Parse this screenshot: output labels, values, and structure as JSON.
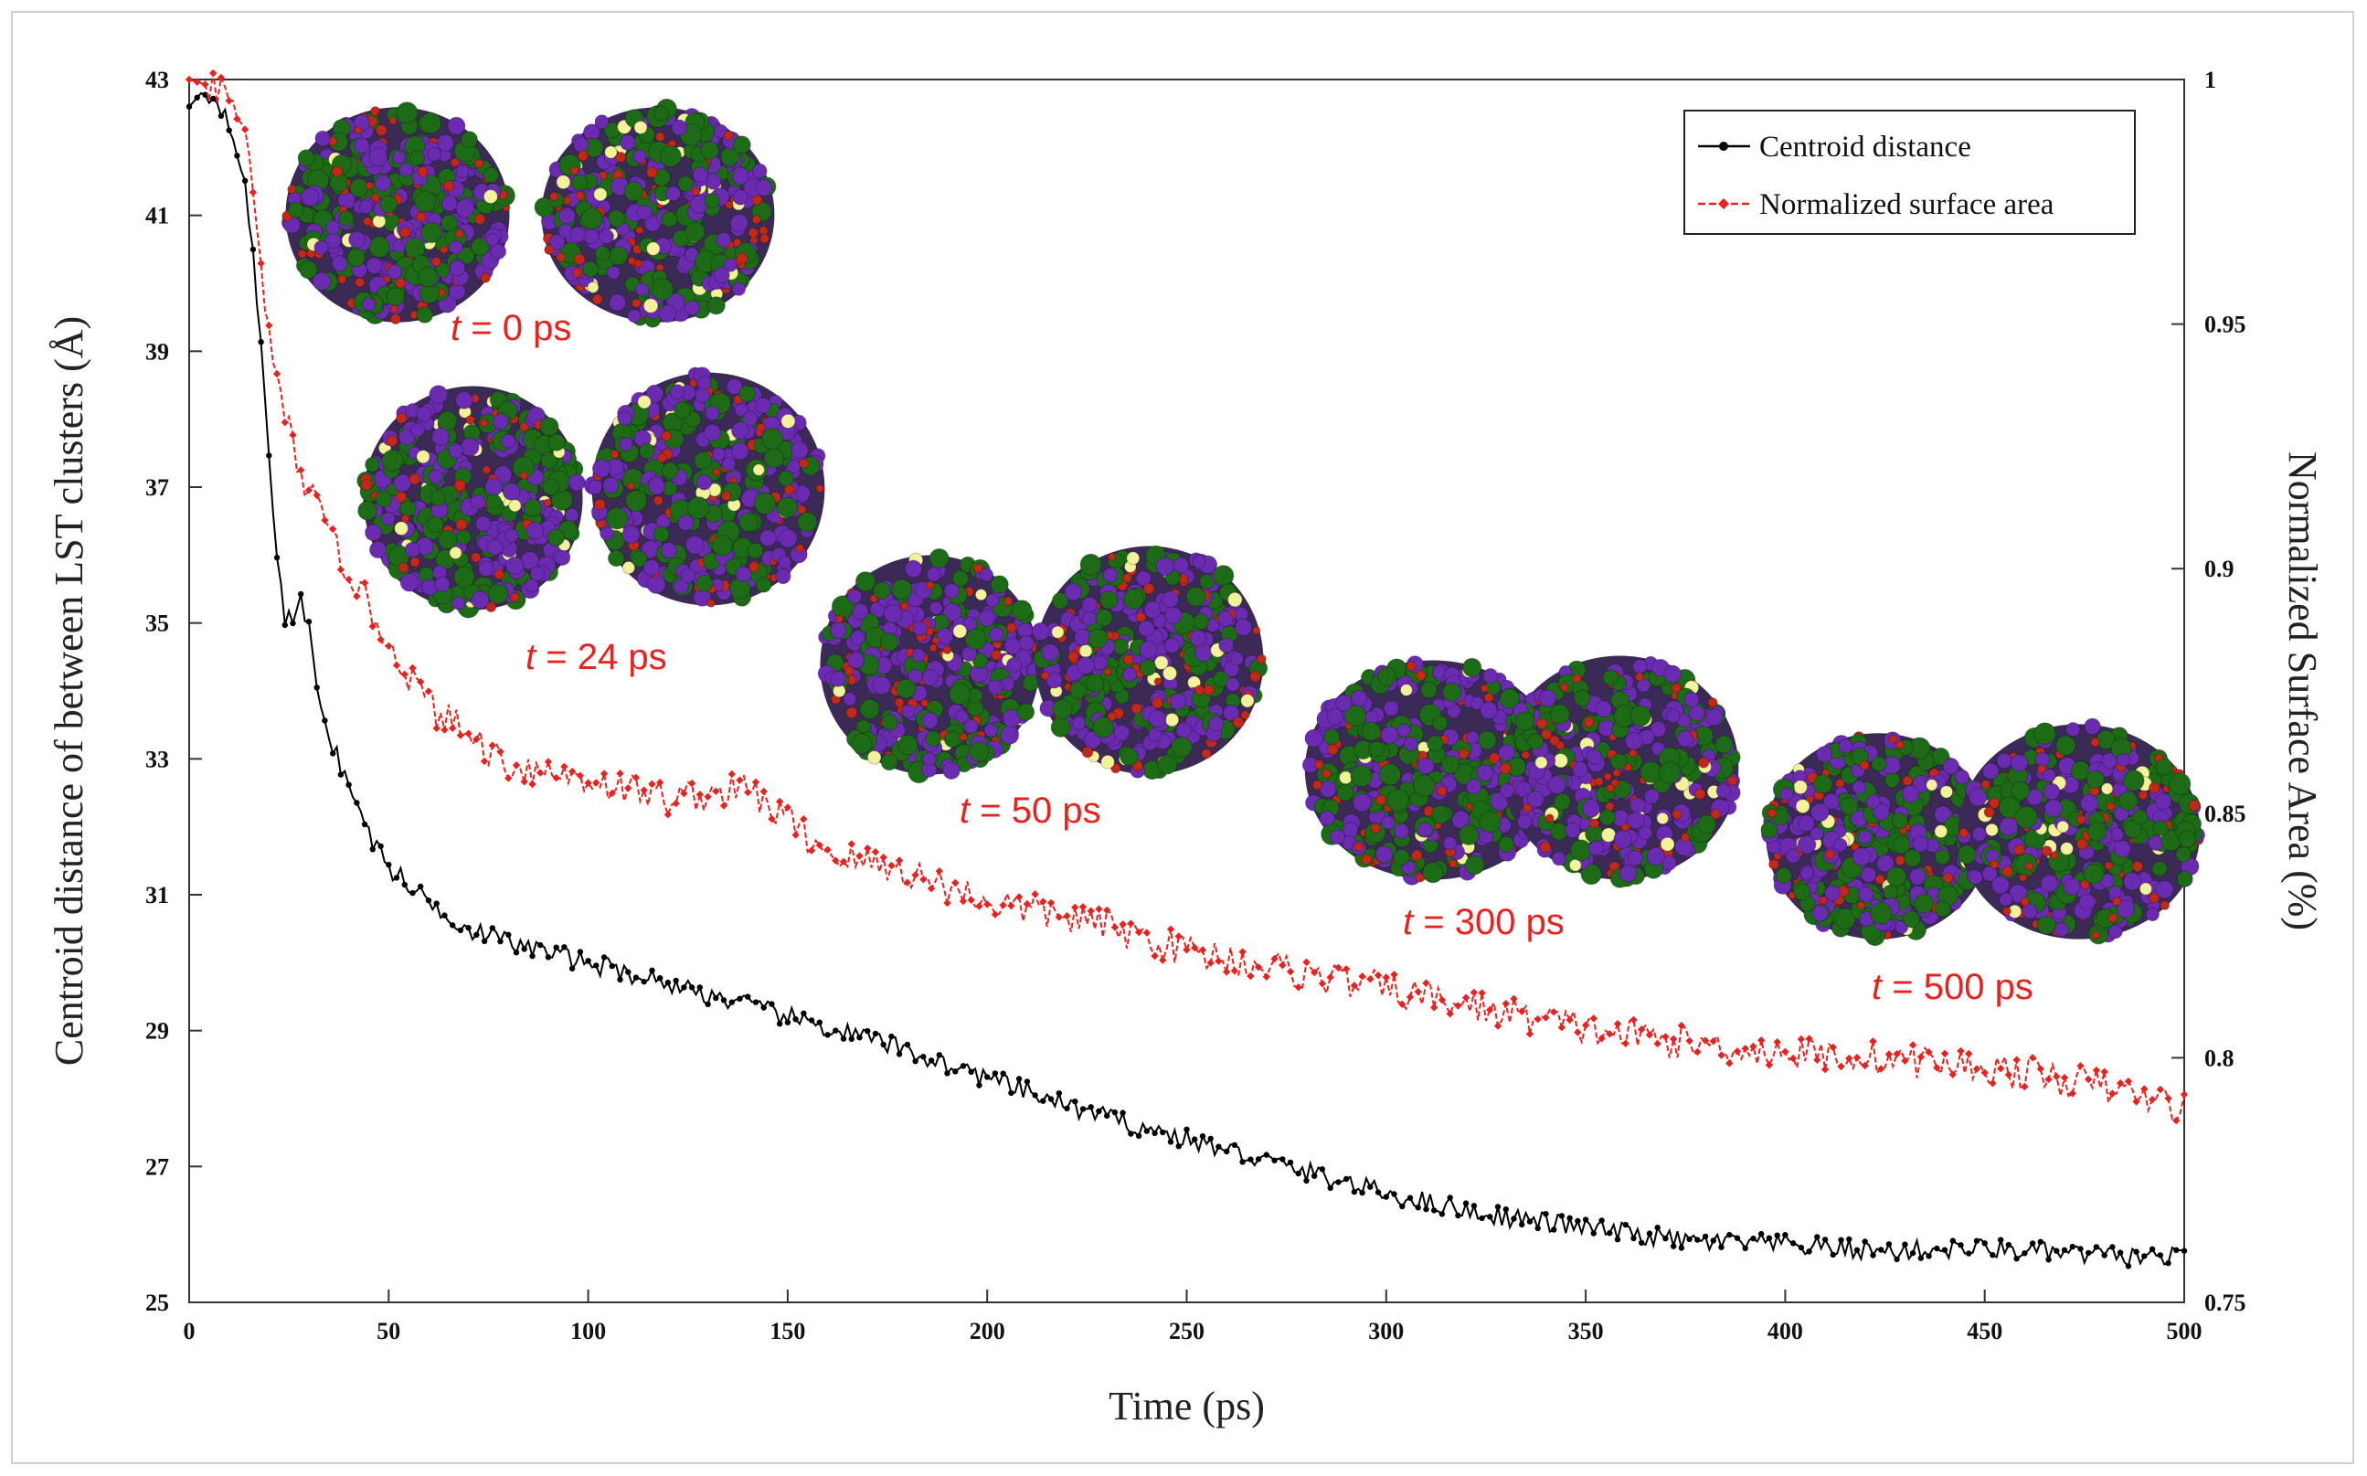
{
  "chart_data": {
    "type": "line",
    "title": "",
    "xlabel": "Time  (ps)",
    "ylabel_left": "Centroid distance of between LST clusters  (Å)",
    "ylabel_right": "Normalized Surface Area  (%)",
    "xlim": [
      0,
      500
    ],
    "ylim_left": [
      25,
      43
    ],
    "ylim_right": [
      0.75,
      1.0
    ],
    "x_ticks": [
      "0",
      "50",
      "100",
      "150",
      "200",
      "250",
      "300",
      "350",
      "400",
      "450",
      "500"
    ],
    "y_left_ticks": [
      "25",
      "27",
      "29",
      "31",
      "33",
      "35",
      "37",
      "39",
      "41",
      "43"
    ],
    "y_right_ticks": [
      "0.75",
      "0.8",
      "0.85",
      "0.9",
      "0.95",
      "1"
    ],
    "legend_position": "top-right",
    "series": [
      {
        "name": "Centroid distance",
        "axis": "left",
        "color": "#000000",
        "marker": "circle",
        "anchors_x": [
          0,
          3,
          7,
          10,
          13,
          16,
          18,
          20,
          22,
          24,
          26,
          28,
          30,
          33,
          36,
          40,
          45,
          50,
          60,
          70,
          80,
          100,
          120,
          150,
          175,
          200,
          225,
          250,
          275,
          300,
          325,
          350,
          375,
          400,
          425,
          450,
          475,
          500
        ],
        "anchors_y": [
          42.6,
          42.8,
          42.7,
          42.4,
          41.8,
          40.5,
          39.0,
          37.5,
          36.0,
          35.1,
          35.0,
          35.3,
          34.9,
          33.8,
          33.2,
          32.6,
          31.9,
          31.4,
          30.9,
          30.5,
          30.3,
          30.0,
          29.7,
          29.2,
          28.8,
          28.3,
          27.8,
          27.4,
          27.0,
          26.6,
          26.3,
          26.1,
          25.9,
          25.85,
          25.75,
          25.8,
          25.7,
          25.65
        ],
        "noise": 0.15
      },
      {
        "name": "Normalized surface area",
        "axis": "right",
        "color": "#e8231f",
        "marker": "diamond",
        "anchors_x": [
          0,
          4,
          8,
          12,
          15,
          17,
          19,
          21,
          23,
          25,
          28,
          32,
          36,
          40,
          45,
          50,
          60,
          70,
          80,
          100,
          120,
          140,
          160,
          180,
          200,
          225,
          250,
          275,
          300,
          325,
          350,
          375,
          400,
          425,
          450,
          475,
          500
        ],
        "anchors_y": [
          1.0,
          0.999,
          0.997,
          0.993,
          0.985,
          0.97,
          0.955,
          0.94,
          0.935,
          0.928,
          0.92,
          0.912,
          0.905,
          0.9,
          0.892,
          0.885,
          0.872,
          0.866,
          0.86,
          0.857,
          0.853,
          0.855,
          0.842,
          0.838,
          0.832,
          0.828,
          0.822,
          0.818,
          0.814,
          0.81,
          0.806,
          0.803,
          0.801,
          0.8,
          0.798,
          0.795,
          0.79
        ],
        "noise": 0.0035
      }
    ],
    "annotations": [
      {
        "t": "t",
        "rest": " = 0 ps"
      },
      {
        "t": "t",
        "rest": " = 24 ps"
      },
      {
        "t": "t",
        "rest": " = 50 ps"
      },
      {
        "t": "t",
        "rest": " = 300 ps"
      },
      {
        "t": "t",
        "rest": " = 500 ps"
      }
    ],
    "insets": [
      {
        "name": "cluster-snapshot-0ps"
      },
      {
        "name": "cluster-snapshot-24ps"
      },
      {
        "name": "cluster-snapshot-50ps"
      },
      {
        "name": "cluster-snapshot-300ps"
      },
      {
        "name": "cluster-snapshot-500ps"
      }
    ],
    "atom_colors": [
      "#6a2bb0",
      "#1d6a17",
      "#c0281a",
      "#f3f29a"
    ]
  }
}
